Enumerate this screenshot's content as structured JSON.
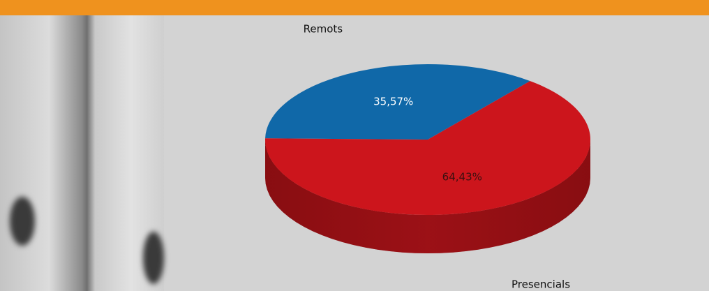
{
  "chart_data": {
    "type": "pie",
    "categories": [
      "Remots",
      "Presencials"
    ],
    "values": [
      35.57,
      64.43
    ],
    "value_labels": [
      "35,57%",
      "64,43%"
    ],
    "colors": [
      "#1068a8",
      "#cc151c"
    ]
  }
}
